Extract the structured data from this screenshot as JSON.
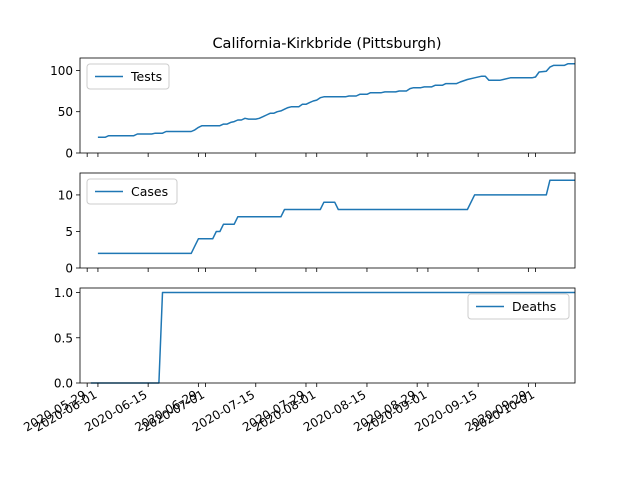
{
  "chart_data": {
    "type": "line",
    "title": "California-Kirkbride (Pittsburgh)",
    "color": "#1f77b4",
    "x_range": [
      "2020-05-27",
      "2020-10-12"
    ],
    "x_tick_labels": [
      {
        "date": "2020-05-29",
        "label": "2020-05-29"
      },
      {
        "date": "2020-06-01",
        "label": "2020-06-01"
      },
      {
        "date": "2020-06-15",
        "label": "2020-06-15"
      },
      {
        "date": "2020-06-29",
        "label": "2020-06-29"
      },
      {
        "date": "2020-07-01",
        "label": "2020-07-01"
      },
      {
        "date": "2020-07-15",
        "label": "2020-07-15"
      },
      {
        "date": "2020-07-29",
        "label": "2020-07-29"
      },
      {
        "date": "2020-08-01",
        "label": "2020-08-01"
      },
      {
        "date": "2020-08-15",
        "label": "2020-08-15"
      },
      {
        "date": "2020-08-29",
        "label": "2020-08-29"
      },
      {
        "date": "2020-09-01",
        "label": "2020-09-01"
      },
      {
        "date": "2020-09-15",
        "label": "2020-09-15"
      },
      {
        "date": "2020-09-29",
        "label": "2020-09-29"
      },
      {
        "date": "2020-10-01",
        "label": "2020-10-01"
      }
    ],
    "panels": [
      {
        "series_name": "Tests",
        "legend_position": "upper-left",
        "ylim": [
          0,
          115
        ],
        "yticks": [
          {
            "v": 0,
            "label": "0"
          },
          {
            "v": 50,
            "label": "50"
          },
          {
            "v": 100,
            "label": "100"
          }
        ],
        "points": [
          [
            "2020-06-01",
            19
          ],
          [
            "2020-06-03",
            19
          ],
          [
            "2020-06-04",
            21
          ],
          [
            "2020-06-11",
            21
          ],
          [
            "2020-06-12",
            23
          ],
          [
            "2020-06-16",
            23
          ],
          [
            "2020-06-17",
            24
          ],
          [
            "2020-06-19",
            24
          ],
          [
            "2020-06-20",
            26
          ],
          [
            "2020-06-27",
            26
          ],
          [
            "2020-06-28",
            28
          ],
          [
            "2020-06-29",
            31
          ],
          [
            "2020-06-30",
            33
          ],
          [
            "2020-07-05",
            33
          ],
          [
            "2020-07-06",
            35
          ],
          [
            "2020-07-07",
            35
          ],
          [
            "2020-07-08",
            37
          ],
          [
            "2020-07-09",
            38
          ],
          [
            "2020-07-10",
            40
          ],
          [
            "2020-07-11",
            40
          ],
          [
            "2020-07-12",
            42
          ],
          [
            "2020-07-13",
            41
          ],
          [
            "2020-07-15",
            41
          ],
          [
            "2020-07-16",
            42
          ],
          [
            "2020-07-17",
            44
          ],
          [
            "2020-07-18",
            46
          ],
          [
            "2020-07-19",
            48
          ],
          [
            "2020-07-20",
            48
          ],
          [
            "2020-07-21",
            50
          ],
          [
            "2020-07-22",
            51
          ],
          [
            "2020-07-23",
            53
          ],
          [
            "2020-07-24",
            55
          ],
          [
            "2020-07-25",
            56
          ],
          [
            "2020-07-27",
            56
          ],
          [
            "2020-07-28",
            59
          ],
          [
            "2020-07-29",
            59
          ],
          [
            "2020-07-30",
            61
          ],
          [
            "2020-07-31",
            63
          ],
          [
            "2020-08-01",
            64
          ],
          [
            "2020-08-02",
            67
          ],
          [
            "2020-08-03",
            68
          ],
          [
            "2020-08-09",
            68
          ],
          [
            "2020-08-10",
            69
          ],
          [
            "2020-08-12",
            69
          ],
          [
            "2020-08-13",
            71
          ],
          [
            "2020-08-15",
            71
          ],
          [
            "2020-08-16",
            73
          ],
          [
            "2020-08-19",
            73
          ],
          [
            "2020-08-20",
            74
          ],
          [
            "2020-08-23",
            74
          ],
          [
            "2020-08-24",
            75
          ],
          [
            "2020-08-26",
            75
          ],
          [
            "2020-08-27",
            78
          ],
          [
            "2020-08-28",
            79
          ],
          [
            "2020-08-30",
            79
          ],
          [
            "2020-08-31",
            80
          ],
          [
            "2020-09-02",
            80
          ],
          [
            "2020-09-03",
            82
          ],
          [
            "2020-09-05",
            82
          ],
          [
            "2020-09-06",
            84
          ],
          [
            "2020-09-09",
            84
          ],
          [
            "2020-09-10",
            86
          ],
          [
            "2020-09-12",
            89
          ],
          [
            "2020-09-14",
            91
          ],
          [
            "2020-09-16",
            93
          ],
          [
            "2020-09-17",
            93
          ],
          [
            "2020-09-18",
            88
          ],
          [
            "2020-09-21",
            88
          ],
          [
            "2020-09-22",
            89
          ],
          [
            "2020-09-24",
            91
          ],
          [
            "2020-09-30",
            91
          ],
          [
            "2020-10-01",
            92
          ],
          [
            "2020-10-02",
            98
          ],
          [
            "2020-10-04",
            99
          ],
          [
            "2020-10-05",
            104
          ],
          [
            "2020-10-06",
            106
          ],
          [
            "2020-10-09",
            106
          ],
          [
            "2020-10-10",
            108
          ],
          [
            "2020-10-12",
            108
          ]
        ]
      },
      {
        "series_name": "Cases",
        "legend_position": "upper-left",
        "ylim": [
          0,
          13
        ],
        "yticks": [
          {
            "v": 0,
            "label": "0"
          },
          {
            "v": 5,
            "label": "5"
          },
          {
            "v": 10,
            "label": "10"
          }
        ],
        "points": [
          [
            "2020-06-01",
            2
          ],
          [
            "2020-06-27",
            2
          ],
          [
            "2020-06-28",
            3
          ],
          [
            "2020-06-29",
            4
          ],
          [
            "2020-07-03",
            4
          ],
          [
            "2020-07-04",
            5
          ],
          [
            "2020-07-05",
            5
          ],
          [
            "2020-07-06",
            6
          ],
          [
            "2020-07-09",
            6
          ],
          [
            "2020-07-10",
            7
          ],
          [
            "2020-07-22",
            7
          ],
          [
            "2020-07-23",
            8
          ],
          [
            "2020-08-02",
            8
          ],
          [
            "2020-08-03",
            9
          ],
          [
            "2020-08-06",
            9
          ],
          [
            "2020-08-07",
            8
          ],
          [
            "2020-09-12",
            8
          ],
          [
            "2020-09-14",
            10
          ],
          [
            "2020-10-04",
            10
          ],
          [
            "2020-10-05",
            12
          ],
          [
            "2020-10-12",
            12
          ]
        ]
      },
      {
        "series_name": "Deaths",
        "legend_position": "upper-right",
        "ylim": [
          0,
          1.05
        ],
        "yticks": [
          {
            "v": 0,
            "label": "0.0"
          },
          {
            "v": 0.5,
            "label": "0.5"
          },
          {
            "v": 1,
            "label": "1.0"
          }
        ],
        "points": [
          [
            "2020-05-30",
            0
          ],
          [
            "2020-06-18",
            0
          ],
          [
            "2020-06-19",
            1
          ],
          [
            "2020-10-12",
            1
          ]
        ]
      }
    ]
  }
}
